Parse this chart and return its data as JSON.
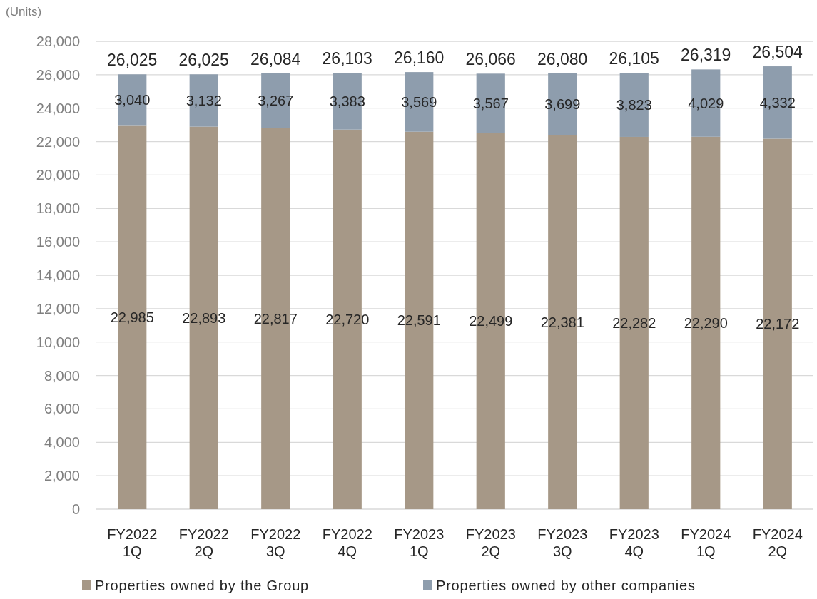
{
  "chart_data": {
    "type": "bar",
    "stacked": true,
    "ylabel": "(Units)",
    "categories": [
      "FY2022 1Q",
      "FY2022 2Q",
      "FY2022 3Q",
      "FY2022 4Q",
      "FY2023 1Q",
      "FY2023 2Q",
      "FY2023 3Q",
      "FY2023 4Q",
      "FY2024 1Q",
      "FY2024 2Q"
    ],
    "series": [
      {
        "name": "Properties owned by the Group",
        "color": "#a69887",
        "values": [
          22985,
          22893,
          22817,
          22720,
          22591,
          22499,
          22381,
          22282,
          22290,
          22172
        ],
        "value_labels": [
          "22,985",
          "22,893",
          "22,817",
          "22,720",
          "22,591",
          "22,499",
          "22,381",
          "22,282",
          "22,290",
          "22,172"
        ]
      },
      {
        "name": "Properties owned by other companies",
        "color": "#8e9dad",
        "values": [
          3040,
          3132,
          3267,
          3383,
          3569,
          3567,
          3699,
          3823,
          4029,
          4332
        ],
        "value_labels": [
          "3,040",
          "3,132",
          "3,267",
          "3,383",
          "3,569",
          "3,567",
          "3,699",
          "3,823",
          "4,029",
          "4,332"
        ]
      }
    ],
    "totals": [
      "26,025",
      "26,025",
      "26,084",
      "26,103",
      "26,160",
      "26,066",
      "26,080",
      "26,105",
      "26,319",
      "26,504"
    ],
    "ylim": [
      0,
      28000
    ],
    "yticks": [
      {
        "value": 0,
        "label": "0"
      },
      {
        "value": 2000,
        "label": "2,000"
      },
      {
        "value": 4000,
        "label": "4,000"
      },
      {
        "value": 6000,
        "label": "6,000"
      },
      {
        "value": 8000,
        "label": "8,000"
      },
      {
        "value": 10000,
        "label": "10,000"
      },
      {
        "value": 12000,
        "label": "12,000"
      },
      {
        "value": 14000,
        "label": "14,000"
      },
      {
        "value": 16000,
        "label": "16,000"
      },
      {
        "value": 18000,
        "label": "18,000"
      },
      {
        "value": 20000,
        "label": "20,000"
      },
      {
        "value": 22000,
        "label": "22,000"
      },
      {
        "value": 24000,
        "label": "24,000"
      },
      {
        "value": 26000,
        "label": "26,000"
      },
      {
        "value": 28000,
        "label": "28,000"
      }
    ],
    "grid": "y",
    "legend": "bottom"
  }
}
